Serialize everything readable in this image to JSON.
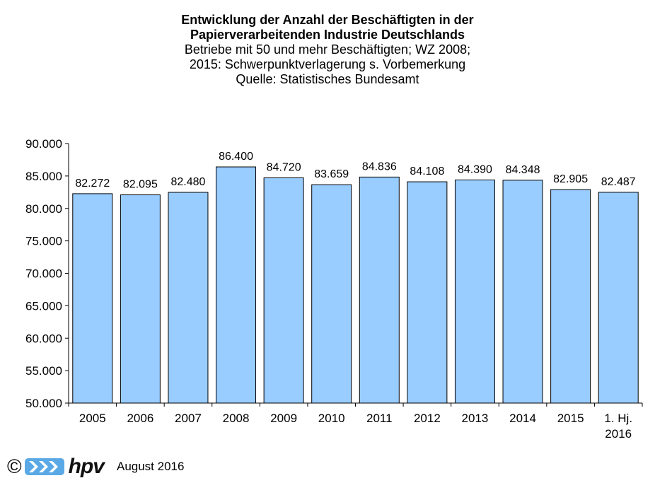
{
  "header": {
    "title_line1": "Entwicklung der Anzahl der Beschäftigten in der",
    "title_line2": "Papierverarbeitenden Industrie Deutschlands",
    "subtitle_line1": "Betriebe mit 50 und mehr Beschäftigten; WZ 2008;",
    "subtitle_line2": "2015: Schwerpunktverlagerung  s. Vorbemerkung",
    "source": "Quelle:  Statistisches  Bundesamt"
  },
  "chart_data": {
    "type": "bar",
    "categories": [
      "2005",
      "2006",
      "2007",
      "2008",
      "2009",
      "2010",
      "2011",
      "2012",
      "2013",
      "2014",
      "2015",
      "1. Hj.\n2016"
    ],
    "values": [
      82272,
      82095,
      82480,
      86400,
      84720,
      83659,
      84836,
      84108,
      84390,
      84348,
      82905,
      82487
    ],
    "value_labels": [
      "82.272",
      "82.095",
      "82.480",
      "86.400",
      "84.720",
      "83.659",
      "84.836",
      "84.108",
      "84.390",
      "84.348",
      "82.905",
      "82.487"
    ],
    "ylim": [
      50000,
      90000
    ],
    "yticks": [
      "50.000",
      "55.000",
      "60.000",
      "65.000",
      "70.000",
      "75.000",
      "80.000",
      "85.000",
      "90.000"
    ],
    "ytick_values": [
      50000,
      55000,
      60000,
      65000,
      70000,
      75000,
      80000,
      85000,
      90000
    ],
    "grid": false,
    "bar_color": "#99ccff",
    "bar_stroke": "#000000"
  },
  "footer": {
    "copyright_symbol": "©",
    "logo_text": "hpv",
    "date": "August 2016"
  },
  "colors": {
    "logo_blue": "#5aa9e6"
  }
}
